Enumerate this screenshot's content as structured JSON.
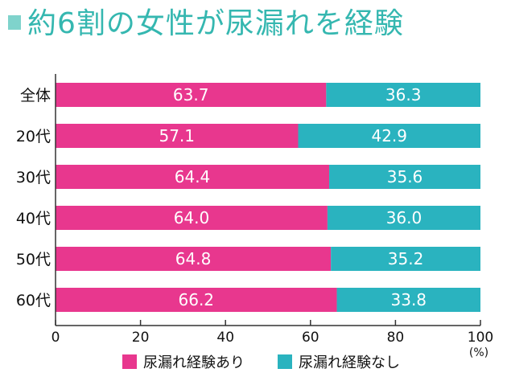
{
  "title": "約6割の女性が尿漏れを経験",
  "colors": {
    "title": "#35b7b0",
    "marker": "#7fd3cc",
    "yes": "#e8378e",
    "no": "#2ab3bf",
    "axis": "#333333"
  },
  "chart_data": {
    "type": "bar",
    "orientation": "horizontal",
    "stacked": true,
    "categories": [
      "全体",
      "20代",
      "30代",
      "40代",
      "50代",
      "60代"
    ],
    "series": [
      {
        "name": "尿漏れ経験あり",
        "values": [
          63.7,
          57.1,
          64.4,
          64.0,
          64.8,
          66.2
        ]
      },
      {
        "name": "尿漏れ経験なし",
        "values": [
          36.3,
          42.9,
          35.6,
          36.0,
          35.2,
          33.8
        ]
      }
    ],
    "xlim": [
      0,
      100
    ],
    "xticks": [
      0,
      20,
      40,
      60,
      80,
      100
    ],
    "xunit": "(%)",
    "grid": false,
    "legend": "bottom"
  }
}
